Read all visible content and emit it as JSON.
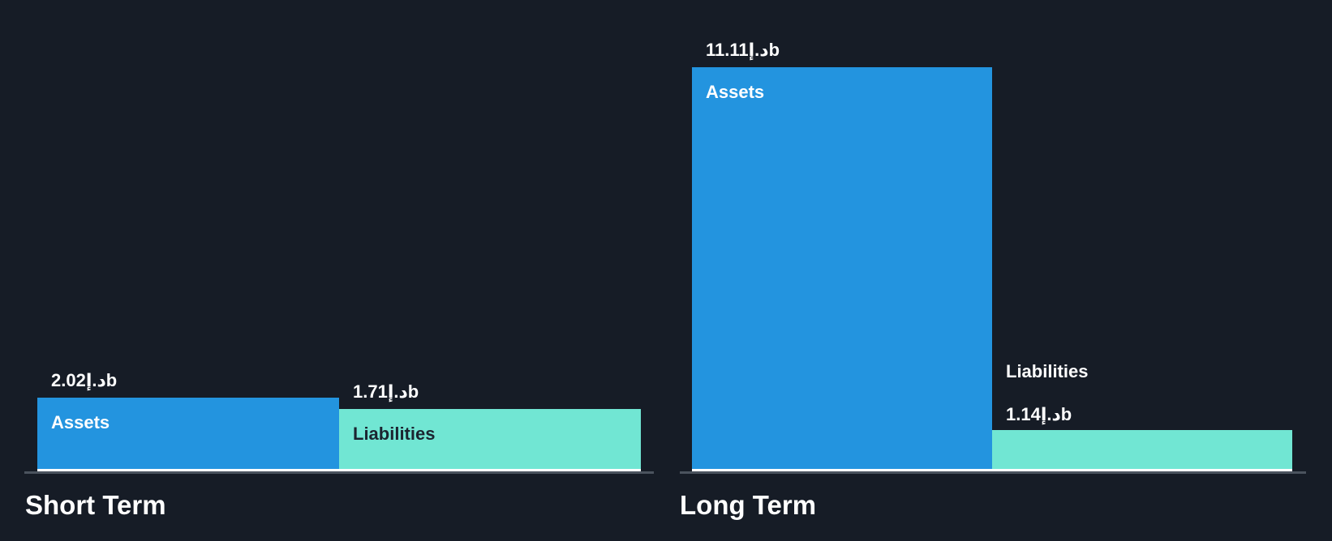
{
  "charts": [
    {
      "title": "Short Term",
      "bars": [
        {
          "name": "Assets",
          "value": 2.02,
          "value_label": "2.02د.إb"
        },
        {
          "name": "Liabilities",
          "value": 1.71,
          "value_label": "1.71د.إb"
        }
      ]
    },
    {
      "title": "Long Term",
      "bars": [
        {
          "name": "Assets",
          "value": 11.11,
          "value_label": "11.11د.إb"
        },
        {
          "name": "Liabilities",
          "value": 1.14,
          "value_label": "1.14د.إb"
        }
      ]
    }
  ],
  "chart_data": {
    "type": "bar",
    "groups": [
      "Short Term",
      "Long Term"
    ],
    "series": [
      {
        "name": "Assets",
        "values": [
          2.02,
          11.11
        ],
        "color": "#2394DF"
      },
      {
        "name": "Liabilities",
        "values": [
          1.71,
          1.14
        ],
        "color": "#71E6D3"
      }
    ],
    "value_labels": [
      [
        "2.02د.إb",
        "1.71د.إb"
      ],
      [
        "11.11د.إb",
        "1.14د.إb"
      ]
    ],
    "currency_symbol": "د.إ",
    "unit": "b",
    "title": "",
    "xlabel": "",
    "ylabel": "",
    "ylim": [
      0,
      11.11
    ],
    "gridlines": false,
    "legend_position": "none",
    "background_color": "#161C26",
    "axis_color": "#4B535E",
    "bar_bottom_edge_color": "#FFFFFF",
    "label_color_on_assets": "#FFFFFF",
    "label_color_on_liabilities": "#1B2430"
  }
}
